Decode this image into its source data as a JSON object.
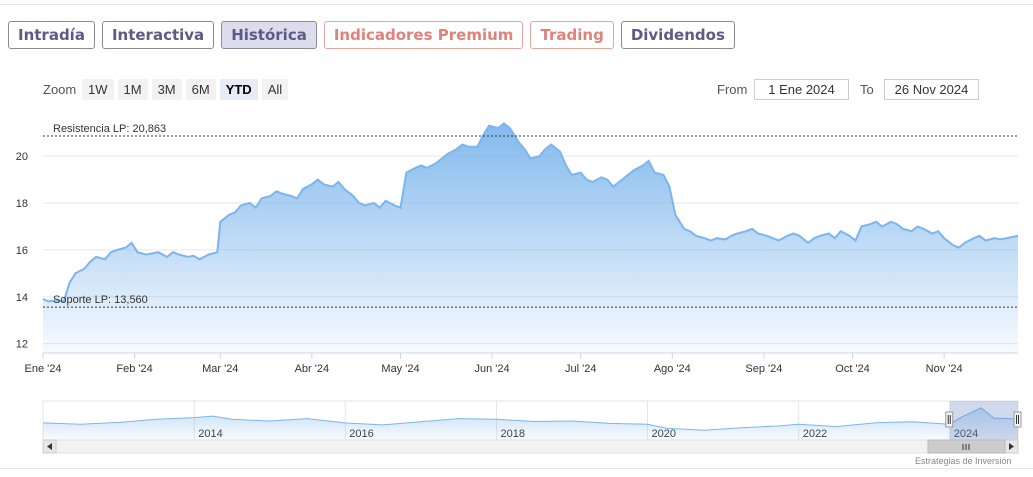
{
  "tabs": [
    {
      "label": "Intradía",
      "style": "normal"
    },
    {
      "label": "Interactiva",
      "style": "normal"
    },
    {
      "label": "Histórica",
      "style": "active"
    },
    {
      "label": "Indicadores Premium",
      "style": "premium"
    },
    {
      "label": "Trading",
      "style": "premium"
    },
    {
      "label": "Dividendos",
      "style": "normal"
    }
  ],
  "zoom": {
    "label": "Zoom",
    "buttons": [
      "1W",
      "1M",
      "3M",
      "6M",
      "YTD",
      "All"
    ],
    "selected": "YTD"
  },
  "range": {
    "from_label": "From",
    "from_value": "1 Ene 2024",
    "to_label": "To",
    "to_value": "26 Nov 2024"
  },
  "credit": "Estrategias de Inversión",
  "colors": {
    "line": "#7cb5ec",
    "tab_border": "#8a8aa3",
    "tab_text": "#5b5b86",
    "premium": "#e0827a"
  },
  "chart_data": {
    "type": "area",
    "title": "",
    "ylim": [
      11.6,
      21.8
    ],
    "y_ticks": [
      12,
      14,
      16,
      18,
      20
    ],
    "y_tick_labels": [
      "12",
      "14",
      "16",
      "18",
      "20"
    ],
    "x_tick_labels": [
      "Ene '24",
      "Feb '24",
      "Mar '24",
      "Abr '24",
      "May '24",
      "Jun '24",
      "Jul '24",
      "Ago '24",
      "Sep '24",
      "Oct '24",
      "Nov '24"
    ],
    "x_tick_dates": [
      "2024-01-01",
      "2024-02-01",
      "2024-03-01",
      "2024-04-01",
      "2024-05-01",
      "2024-06-01",
      "2024-07-01",
      "2024-08-01",
      "2024-09-01",
      "2024-10-01",
      "2024-11-01"
    ],
    "x_end_date": "2024-11-26",
    "reference_lines": [
      {
        "label": "Resistencia LP: 20,863",
        "value": 20.863
      },
      {
        "label": "Soporte LP: 13,560",
        "value": 13.56
      }
    ],
    "series": [
      {
        "values": [
          [
            "2024-01-01",
            13.9
          ],
          [
            "2024-01-03",
            13.8
          ],
          [
            "2024-01-05",
            13.85
          ],
          [
            "2024-01-08",
            13.8
          ],
          [
            "2024-01-10",
            14.6
          ],
          [
            "2024-01-12",
            15.0
          ],
          [
            "2024-01-15",
            15.2
          ],
          [
            "2024-01-17",
            15.5
          ],
          [
            "2024-01-19",
            15.7
          ],
          [
            "2024-01-22",
            15.6
          ],
          [
            "2024-01-24",
            15.9
          ],
          [
            "2024-01-26",
            16.0
          ],
          [
            "2024-01-29",
            16.1
          ],
          [
            "2024-01-31",
            16.3
          ],
          [
            "2024-02-02",
            15.9
          ],
          [
            "2024-02-05",
            15.8
          ],
          [
            "2024-02-07",
            15.85
          ],
          [
            "2024-02-09",
            15.9
          ],
          [
            "2024-02-12",
            15.7
          ],
          [
            "2024-02-14",
            15.9
          ],
          [
            "2024-02-16",
            15.8
          ],
          [
            "2024-02-19",
            15.7
          ],
          [
            "2024-02-21",
            15.75
          ],
          [
            "2024-02-23",
            15.6
          ],
          [
            "2024-02-26",
            15.8
          ],
          [
            "2024-02-29",
            15.9
          ],
          [
            "2024-03-01",
            17.2
          ],
          [
            "2024-03-04",
            17.5
          ],
          [
            "2024-03-06",
            17.6
          ],
          [
            "2024-03-08",
            17.9
          ],
          [
            "2024-03-11",
            18.0
          ],
          [
            "2024-03-13",
            17.8
          ],
          [
            "2024-03-15",
            18.2
          ],
          [
            "2024-03-18",
            18.3
          ],
          [
            "2024-03-20",
            18.5
          ],
          [
            "2024-03-22",
            18.4
          ],
          [
            "2024-03-25",
            18.3
          ],
          [
            "2024-03-27",
            18.2
          ],
          [
            "2024-03-29",
            18.6
          ],
          [
            "2024-04-01",
            18.8
          ],
          [
            "2024-04-03",
            19.0
          ],
          [
            "2024-04-05",
            18.8
          ],
          [
            "2024-04-08",
            18.7
          ],
          [
            "2024-04-10",
            18.9
          ],
          [
            "2024-04-12",
            18.6
          ],
          [
            "2024-04-15",
            18.3
          ],
          [
            "2024-04-17",
            18.0
          ],
          [
            "2024-04-19",
            17.9
          ],
          [
            "2024-04-22",
            18.0
          ],
          [
            "2024-04-24",
            17.8
          ],
          [
            "2024-04-26",
            18.1
          ],
          [
            "2024-04-29",
            17.9
          ],
          [
            "2024-05-01",
            17.8
          ],
          [
            "2024-05-03",
            19.3
          ],
          [
            "2024-05-06",
            19.5
          ],
          [
            "2024-05-08",
            19.6
          ],
          [
            "2024-05-10",
            19.5
          ],
          [
            "2024-05-13",
            19.7
          ],
          [
            "2024-05-15",
            19.9
          ],
          [
            "2024-05-17",
            20.1
          ],
          [
            "2024-05-20",
            20.3
          ],
          [
            "2024-05-22",
            20.5
          ],
          [
            "2024-05-24",
            20.4
          ],
          [
            "2024-05-27",
            20.4
          ],
          [
            "2024-05-29",
            20.9
          ],
          [
            "2024-05-31",
            21.3
          ],
          [
            "2024-06-03",
            21.2
          ],
          [
            "2024-06-05",
            21.4
          ],
          [
            "2024-06-07",
            21.2
          ],
          [
            "2024-06-10",
            20.6
          ],
          [
            "2024-06-12",
            20.3
          ],
          [
            "2024-06-14",
            19.9
          ],
          [
            "2024-06-17",
            20.0
          ],
          [
            "2024-06-19",
            20.3
          ],
          [
            "2024-06-21",
            20.5
          ],
          [
            "2024-06-24",
            20.2
          ],
          [
            "2024-06-26",
            19.6
          ],
          [
            "2024-06-28",
            19.2
          ],
          [
            "2024-07-01",
            19.3
          ],
          [
            "2024-07-03",
            19.0
          ],
          [
            "2024-07-05",
            18.9
          ],
          [
            "2024-07-08",
            19.1
          ],
          [
            "2024-07-10",
            19.0
          ],
          [
            "2024-07-12",
            18.7
          ],
          [
            "2024-07-15",
            19.0
          ],
          [
            "2024-07-17",
            19.2
          ],
          [
            "2024-07-19",
            19.4
          ],
          [
            "2024-07-22",
            19.6
          ],
          [
            "2024-07-24",
            19.8
          ],
          [
            "2024-07-26",
            19.3
          ],
          [
            "2024-07-29",
            19.2
          ],
          [
            "2024-07-31",
            18.7
          ],
          [
            "2024-08-02",
            17.5
          ],
          [
            "2024-08-05",
            16.9
          ],
          [
            "2024-08-07",
            16.8
          ],
          [
            "2024-08-09",
            16.6
          ],
          [
            "2024-08-12",
            16.5
          ],
          [
            "2024-08-14",
            16.4
          ],
          [
            "2024-08-16",
            16.5
          ],
          [
            "2024-08-19",
            16.45
          ],
          [
            "2024-08-21",
            16.6
          ],
          [
            "2024-08-23",
            16.7
          ],
          [
            "2024-08-26",
            16.8
          ],
          [
            "2024-08-28",
            16.9
          ],
          [
            "2024-08-30",
            16.7
          ],
          [
            "2024-09-02",
            16.6
          ],
          [
            "2024-09-04",
            16.5
          ],
          [
            "2024-09-06",
            16.4
          ],
          [
            "2024-09-09",
            16.6
          ],
          [
            "2024-09-11",
            16.7
          ],
          [
            "2024-09-13",
            16.6
          ],
          [
            "2024-09-16",
            16.3
          ],
          [
            "2024-09-18",
            16.5
          ],
          [
            "2024-09-20",
            16.6
          ],
          [
            "2024-09-23",
            16.7
          ],
          [
            "2024-09-25",
            16.5
          ],
          [
            "2024-09-27",
            16.8
          ],
          [
            "2024-09-30",
            16.6
          ],
          [
            "2024-10-02",
            16.4
          ],
          [
            "2024-10-04",
            17.0
          ],
          [
            "2024-10-07",
            17.1
          ],
          [
            "2024-10-09",
            17.2
          ],
          [
            "2024-10-11",
            17.0
          ],
          [
            "2024-10-14",
            17.2
          ],
          [
            "2024-10-16",
            17.1
          ],
          [
            "2024-10-18",
            16.9
          ],
          [
            "2024-10-21",
            16.8
          ],
          [
            "2024-10-23",
            17.0
          ],
          [
            "2024-10-25",
            16.9
          ],
          [
            "2024-10-28",
            16.7
          ],
          [
            "2024-10-30",
            16.8
          ],
          [
            "2024-11-01",
            16.5
          ],
          [
            "2024-11-04",
            16.2
          ],
          [
            "2024-11-06",
            16.1
          ],
          [
            "2024-11-08",
            16.3
          ],
          [
            "2024-11-11",
            16.5
          ],
          [
            "2024-11-13",
            16.6
          ],
          [
            "2024-11-15",
            16.4
          ],
          [
            "2024-11-18",
            16.5
          ],
          [
            "2024-11-20",
            16.45
          ],
          [
            "2024-11-22",
            16.5
          ],
          [
            "2024-11-26",
            16.6
          ]
        ]
      }
    ],
    "navigator": {
      "x_tick_labels": [
        "2014",
        "2016",
        "2018",
        "2020",
        "2022",
        "2024"
      ],
      "x_tick_dates": [
        "2014-01-01",
        "2016-01-01",
        "2018-01-01",
        "2020-01-01",
        "2022-01-01",
        "2024-01-01"
      ],
      "x_start_date": "2012-01-01",
      "x_end_date": "2024-11-26",
      "selected_from": "2024-01-01",
      "selected_to": "2024-11-26",
      "ylim": [
        8,
        24
      ],
      "values": [
        [
          "2012-01-01",
          15.0
        ],
        [
          "2012-07-01",
          14.5
        ],
        [
          "2013-01-01",
          15.2
        ],
        [
          "2013-07-01",
          16.5
        ],
        [
          "2014-01-01",
          17.2
        ],
        [
          "2014-04-01",
          17.8
        ],
        [
          "2014-07-01",
          16.5
        ],
        [
          "2015-01-01",
          15.8
        ],
        [
          "2015-07-01",
          16.8
        ],
        [
          "2016-01-01",
          15.0
        ],
        [
          "2016-07-01",
          14.2
        ],
        [
          "2017-01-01",
          15.5
        ],
        [
          "2017-07-01",
          16.8
        ],
        [
          "2018-01-01",
          16.5
        ],
        [
          "2018-07-01",
          15.6
        ],
        [
          "2019-01-01",
          15.8
        ],
        [
          "2019-07-01",
          14.8
        ],
        [
          "2020-01-01",
          14.5
        ],
        [
          "2020-04-01",
          12.8
        ],
        [
          "2020-10-01",
          12.0
        ],
        [
          "2021-04-01",
          13.0
        ],
        [
          "2021-10-01",
          13.8
        ],
        [
          "2022-01-01",
          14.5
        ],
        [
          "2022-07-01",
          13.5
        ],
        [
          "2023-01-01",
          15.0
        ],
        [
          "2023-07-01",
          15.5
        ],
        [
          "2024-01-01",
          14.5
        ],
        [
          "2024-03-01",
          17.5
        ],
        [
          "2024-06-01",
          21.2
        ],
        [
          "2024-08-01",
          17.0
        ],
        [
          "2024-11-26",
          16.6
        ]
      ]
    }
  }
}
